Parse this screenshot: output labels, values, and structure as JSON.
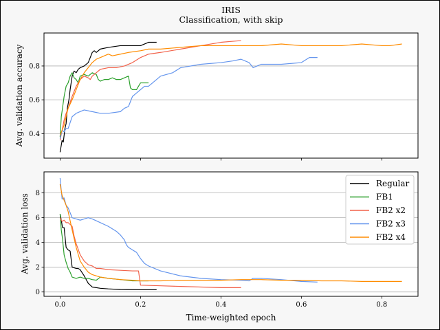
{
  "title": "IRIS",
  "subtitle": "Classification, with skip",
  "chart_data": [
    {
      "type": "line",
      "title": "IRIS",
      "subtitle": "Classification, with skip",
      "xlabel": "",
      "ylabel": "Avg. validation accuracy",
      "xlim": [
        -0.04,
        0.89
      ],
      "ylim": [
        0.255,
        0.995
      ],
      "xticks": [
        0.0,
        0.2,
        0.4,
        0.6,
        0.8
      ],
      "xtick_labels_visible": false,
      "yticks": [
        0.4,
        0.6,
        0.8
      ],
      "ytick_labels": [
        "0.4",
        "0.6",
        "0.8"
      ],
      "grid": "y",
      "legend": "none",
      "series": [
        {
          "color": "#000000",
          "x": [
            0.0,
            0.005,
            0.008,
            0.012,
            0.015,
            0.018,
            0.022,
            0.025,
            0.03,
            0.035,
            0.04,
            0.045,
            0.05,
            0.06,
            0.07,
            0.075,
            0.08,
            0.085,
            0.09,
            0.1,
            0.12,
            0.15,
            0.2,
            0.22,
            0.24
          ],
          "y": [
            0.29,
            0.36,
            0.35,
            0.43,
            0.46,
            0.55,
            0.6,
            0.66,
            0.74,
            0.77,
            0.76,
            0.78,
            0.79,
            0.8,
            0.82,
            0.85,
            0.88,
            0.89,
            0.88,
            0.9,
            0.91,
            0.92,
            0.92,
            0.94,
            0.94
          ]
        },
        {
          "color": "#2ca02c",
          "x": [
            0.0,
            0.003,
            0.006,
            0.01,
            0.015,
            0.02,
            0.025,
            0.03,
            0.035,
            0.04,
            0.045,
            0.05,
            0.06,
            0.07,
            0.08,
            0.09,
            0.095,
            0.1,
            0.11,
            0.12,
            0.13,
            0.14,
            0.15,
            0.16,
            0.17,
            0.175,
            0.18,
            0.19,
            0.2,
            0.21,
            0.22
          ],
          "y": [
            0.38,
            0.5,
            0.55,
            0.62,
            0.68,
            0.7,
            0.74,
            0.76,
            0.73,
            0.72,
            0.7,
            0.74,
            0.75,
            0.74,
            0.76,
            0.75,
            0.72,
            0.71,
            0.72,
            0.72,
            0.73,
            0.72,
            0.72,
            0.73,
            0.74,
            0.67,
            0.66,
            0.66,
            0.7,
            0.7,
            0.7
          ]
        },
        {
          "color": "#f2624a",
          "x": [
            0.0,
            0.005,
            0.01,
            0.015,
            0.02,
            0.03,
            0.04,
            0.05,
            0.06,
            0.07,
            0.075,
            0.08,
            0.09,
            0.1,
            0.12,
            0.14,
            0.16,
            0.18,
            0.2,
            0.22,
            0.25,
            0.3,
            0.35,
            0.4,
            0.45
          ],
          "y": [
            0.36,
            0.42,
            0.48,
            0.52,
            0.55,
            0.62,
            0.68,
            0.72,
            0.74,
            0.73,
            0.72,
            0.74,
            0.76,
            0.78,
            0.79,
            0.79,
            0.8,
            0.82,
            0.85,
            0.87,
            0.88,
            0.9,
            0.92,
            0.94,
            0.95
          ]
        },
        {
          "color": "#6495ed",
          "x": [
            0.0,
            0.005,
            0.01,
            0.015,
            0.02,
            0.03,
            0.04,
            0.05,
            0.06,
            0.08,
            0.1,
            0.12,
            0.15,
            0.16,
            0.17,
            0.18,
            0.19,
            0.2,
            0.21,
            0.22,
            0.25,
            0.28,
            0.3,
            0.35,
            0.4,
            0.43,
            0.45,
            0.47,
            0.48,
            0.49,
            0.5,
            0.55,
            0.6,
            0.62,
            0.64
          ],
          "y": [
            0.37,
            0.42,
            0.41,
            0.43,
            0.43,
            0.5,
            0.52,
            0.53,
            0.54,
            0.53,
            0.52,
            0.52,
            0.53,
            0.55,
            0.56,
            0.62,
            0.64,
            0.66,
            0.68,
            0.68,
            0.74,
            0.76,
            0.79,
            0.81,
            0.82,
            0.83,
            0.84,
            0.82,
            0.79,
            0.8,
            0.81,
            0.81,
            0.82,
            0.85,
            0.85
          ]
        },
        {
          "color": "#ff8c00",
          "x": [
            0.0,
            0.005,
            0.01,
            0.015,
            0.02,
            0.03,
            0.04,
            0.05,
            0.06,
            0.07,
            0.08,
            0.09,
            0.1,
            0.12,
            0.13,
            0.15,
            0.17,
            0.2,
            0.22,
            0.25,
            0.3,
            0.35,
            0.4,
            0.45,
            0.5,
            0.55,
            0.6,
            0.65,
            0.7,
            0.75,
            0.8,
            0.82,
            0.85
          ],
          "y": [
            0.39,
            0.42,
            0.45,
            0.5,
            0.55,
            0.6,
            0.66,
            0.72,
            0.76,
            0.79,
            0.82,
            0.84,
            0.85,
            0.87,
            0.86,
            0.87,
            0.88,
            0.89,
            0.9,
            0.9,
            0.91,
            0.92,
            0.92,
            0.92,
            0.92,
            0.93,
            0.92,
            0.92,
            0.92,
            0.93,
            0.92,
            0.92,
            0.93
          ]
        }
      ]
    },
    {
      "type": "line",
      "xlabel": "Time-weighted epoch",
      "ylabel": "Avg. validation loss",
      "xlim": [
        -0.04,
        0.89
      ],
      "ylim": [
        -0.35,
        9.7
      ],
      "xticks": [
        0.0,
        0.2,
        0.4,
        0.6,
        0.8
      ],
      "xtick_labels": [
        "0.0",
        "0.2",
        "0.4",
        "0.6",
        "0.8"
      ],
      "yticks": [
        0,
        2,
        4,
        6,
        8
      ],
      "ytick_labels": [
        "0",
        "2",
        "4",
        "6",
        "8"
      ],
      "grid": "y",
      "legend": "top-right",
      "series": [
        {
          "name": "Regular",
          "color": "#000000",
          "x": [
            0.0,
            0.003,
            0.006,
            0.01,
            0.015,
            0.02,
            0.025,
            0.03,
            0.04,
            0.045,
            0.05,
            0.06,
            0.07,
            0.08,
            0.1,
            0.12,
            0.15,
            0.2,
            0.24
          ],
          "y": [
            6.3,
            5.8,
            5.2,
            5.2,
            3.6,
            3.4,
            3.3,
            2.0,
            1.9,
            1.9,
            1.8,
            1.3,
            0.7,
            0.4,
            0.3,
            0.25,
            0.2,
            0.18,
            0.18
          ]
        },
        {
          "name": "FB1",
          "color": "#2ca02c",
          "x": [
            0.0,
            0.003,
            0.006,
            0.01,
            0.015,
            0.02,
            0.025,
            0.03,
            0.04,
            0.05,
            0.06,
            0.07,
            0.08,
            0.09,
            0.1,
            0.12,
            0.15,
            0.18,
            0.2,
            0.22
          ],
          "y": [
            6.3,
            5.0,
            4.3,
            3.0,
            2.4,
            1.9,
            1.6,
            1.2,
            1.1,
            1.2,
            1.1,
            1.1,
            1.0,
            0.95,
            1.2,
            1.1,
            1.0,
            0.9,
            0.9,
            0.9
          ]
        },
        {
          "name": "FB2 x2",
          "color": "#f2624a",
          "x": [
            0.0,
            0.005,
            0.01,
            0.015,
            0.02,
            0.03,
            0.035,
            0.04,
            0.05,
            0.06,
            0.07,
            0.08,
            0.09,
            0.1,
            0.12,
            0.15,
            0.18,
            0.195,
            0.2,
            0.25,
            0.3,
            0.35,
            0.4,
            0.45
          ],
          "y": [
            6.0,
            5.7,
            5.8,
            5.6,
            5.6,
            5.3,
            4.5,
            3.9,
            3.0,
            2.5,
            2.2,
            2.1,
            1.9,
            1.9,
            1.8,
            1.75,
            1.7,
            1.7,
            0.55,
            0.5,
            0.45,
            0.4,
            0.35,
            0.35
          ]
        },
        {
          "name": "FB2 x3",
          "color": "#6495ed",
          "x": [
            0.0,
            0.005,
            0.01,
            0.015,
            0.02,
            0.03,
            0.04,
            0.05,
            0.06,
            0.07,
            0.08,
            0.1,
            0.12,
            0.14,
            0.15,
            0.16,
            0.165,
            0.17,
            0.175,
            0.18,
            0.19,
            0.2,
            0.21,
            0.22,
            0.25,
            0.3,
            0.35,
            0.4,
            0.45,
            0.47,
            0.48,
            0.5,
            0.55,
            0.6,
            0.64
          ],
          "y": [
            9.2,
            7.5,
            7.6,
            7.0,
            6.8,
            6.0,
            5.9,
            5.8,
            5.9,
            6.0,
            5.9,
            5.6,
            5.3,
            4.9,
            4.6,
            4.2,
            3.8,
            3.6,
            3.5,
            3.4,
            3.2,
            2.7,
            2.3,
            2.1,
            1.7,
            1.3,
            1.1,
            1.0,
            0.95,
            0.9,
            1.1,
            1.1,
            1.0,
            0.85,
            0.8
          ]
        },
        {
          "name": "FB2 x4",
          "color": "#ff8c00",
          "x": [
            0.0,
            0.005,
            0.01,
            0.015,
            0.02,
            0.03,
            0.04,
            0.05,
            0.06,
            0.07,
            0.08,
            0.1,
            0.12,
            0.15,
            0.18,
            0.2,
            0.25,
            0.3,
            0.35,
            0.4,
            0.45,
            0.5,
            0.55,
            0.6,
            0.65,
            0.7,
            0.75,
            0.8,
            0.85
          ],
          "y": [
            8.7,
            7.8,
            7.4,
            7.0,
            6.5,
            5.0,
            3.6,
            2.5,
            2.0,
            1.6,
            1.4,
            1.2,
            1.1,
            1.0,
            0.95,
            0.9,
            0.9,
            0.95,
            0.95,
            0.95,
            1.0,
            1.0,
            0.95,
            0.95,
            0.9,
            0.9,
            0.85,
            0.85,
            0.85
          ]
        }
      ]
    }
  ]
}
